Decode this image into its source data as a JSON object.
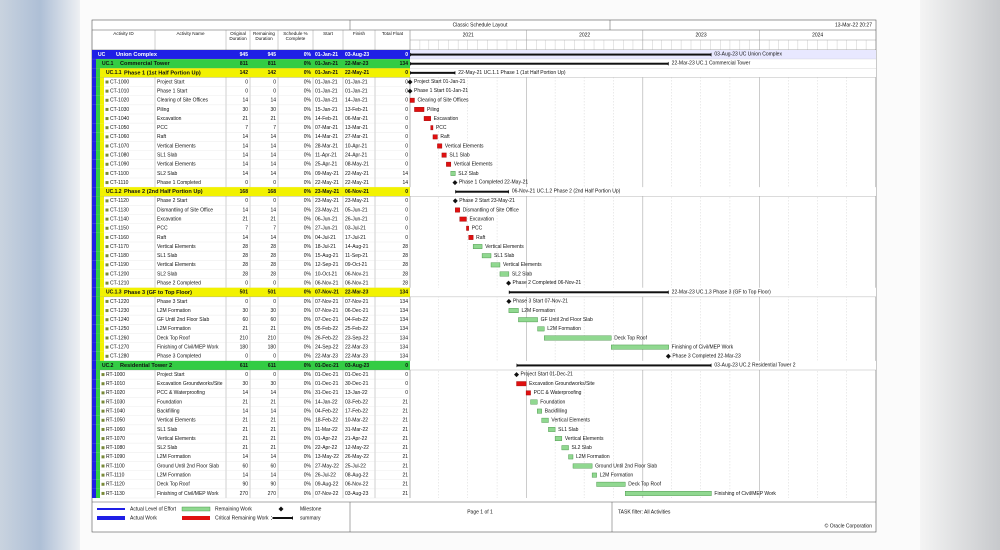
{
  "schedule": {
    "title": "Classic Schedule Layout",
    "date": "13-Mar-22 20:27",
    "columns": [
      "Activity ID",
      "Activity Name",
      "Original Duration",
      "Remaining Duration",
      "Schedule % Complete",
      "Start",
      "Finish",
      "Total Float"
    ],
    "years": [
      "2021",
      "2022",
      "2023",
      "2024"
    ],
    "xlim": [
      "01-Jan-21",
      "31-Dec-24"
    ],
    "wbs": {
      "id": "UC",
      "name": "Union Complex",
      "od": 945,
      "rd": 945,
      "pct": "0%",
      "start": "01-Jan-21",
      "finish": "03-Aug-23",
      "tf": 0,
      "children": [
        {
          "id": "UC.1",
          "name": "Commercial Tower",
          "od": 811,
          "rd": 811,
          "pct": "0%",
          "start": "01-Jan-21",
          "finish": "22-Mar-23",
          "tf": 134,
          "children": [
            {
              "id": "UC.1.1",
              "name": "Phase 1 (1st Half Portion Up)",
              "od": 142,
              "rd": 142,
              "pct": "0%",
              "start": "01-Jan-21",
              "finish": "22-May-21",
              "tf": 0,
              "children": [
                {
                  "id": "CT-1000",
                  "name": "Project Start",
                  "od": 0,
                  "rd": 0,
                  "pct": "0%",
                  "start": "01-Jan-21",
                  "finish": "01-Jan-21",
                  "tf": 0
                },
                {
                  "id": "CT-1010",
                  "name": "Phase 1 Start",
                  "od": 0,
                  "rd": 0,
                  "pct": "0%",
                  "start": "01-Jan-21",
                  "finish": "01-Jan-21",
                  "tf": 0
                },
                {
                  "id": "CT-1020",
                  "name": "Clearing of Site Offices",
                  "od": 14,
                  "rd": 14,
                  "pct": "0%",
                  "start": "01-Jan-21",
                  "finish": "14-Jan-21",
                  "tf": 0
                },
                {
                  "id": "CT-1030",
                  "name": "Piling",
                  "od": 30,
                  "rd": 30,
                  "pct": "0%",
                  "start": "15-Jan-21",
                  "finish": "13-Feb-21",
                  "tf": 0
                },
                {
                  "id": "CT-1040",
                  "name": "Excavation",
                  "od": 21,
                  "rd": 21,
                  "pct": "0%",
                  "start": "14-Feb-21",
                  "finish": "06-Mar-21",
                  "tf": 0
                },
                {
                  "id": "CT-1050",
                  "name": "PCC",
                  "od": 7,
                  "rd": 7,
                  "pct": "0%",
                  "start": "07-Mar-21",
                  "finish": "13-Mar-21",
                  "tf": 0
                },
                {
                  "id": "CT-1060",
                  "name": "Raft",
                  "od": 14,
                  "rd": 14,
                  "pct": "0%",
                  "start": "14-Mar-21",
                  "finish": "27-Mar-21",
                  "tf": 0
                },
                {
                  "id": "CT-1070",
                  "name": "Vertical Elements",
                  "od": 14,
                  "rd": 14,
                  "pct": "0%",
                  "start": "28-Mar-21",
                  "finish": "10-Apr-21",
                  "tf": 0
                },
                {
                  "id": "CT-1080",
                  "name": "SL1 Slab",
                  "od": 14,
                  "rd": 14,
                  "pct": "0%",
                  "start": "11-Apr-21",
                  "finish": "24-Apr-21",
                  "tf": 0
                },
                {
                  "id": "CT-1090",
                  "name": "Vertical Elements",
                  "od": 14,
                  "rd": 14,
                  "pct": "0%",
                  "start": "25-Apr-21",
                  "finish": "08-May-21",
                  "tf": 0
                },
                {
                  "id": "CT-1100",
                  "name": "SL2 Slab",
                  "od": 14,
                  "rd": 14,
                  "pct": "0%",
                  "start": "09-May-21",
                  "finish": "22-May-21",
                  "tf": 14
                },
                {
                  "id": "CT-1110",
                  "name": "Phase 1 Completed",
                  "od": 0,
                  "rd": 0,
                  "pct": "0%",
                  "start": "22-May-21",
                  "finish": "22-May-21",
                  "tf": 14
                }
              ]
            },
            {
              "id": "UC.1.2",
              "name": "Phase 2 (2nd Half Portion Up)",
              "od": 168,
              "rd": 168,
              "pct": "0%",
              "start": "23-May-21",
              "finish": "06-Nov-21",
              "tf": 0,
              "children": [
                {
                  "id": "CT-1120",
                  "name": "Phase 2 Start",
                  "od": 0,
                  "rd": 0,
                  "pct": "0%",
                  "start": "23-May-21",
                  "finish": "23-May-21",
                  "tf": 0
                },
                {
                  "id": "CT-1130",
                  "name": "Dismantling of Site Office",
                  "od": 14,
                  "rd": 14,
                  "pct": "0%",
                  "start": "23-May-21",
                  "finish": "05-Jun-21",
                  "tf": 0
                },
                {
                  "id": "CT-1140",
                  "name": "Excavation",
                  "od": 21,
                  "rd": 21,
                  "pct": "0%",
                  "start": "06-Jun-21",
                  "finish": "26-Jun-21",
                  "tf": 0
                },
                {
                  "id": "CT-1150",
                  "name": "PCC",
                  "od": 7,
                  "rd": 7,
                  "pct": "0%",
                  "start": "27-Jun-21",
                  "finish": "03-Jul-21",
                  "tf": 0
                },
                {
                  "id": "CT-1160",
                  "name": "Raft",
                  "od": 14,
                  "rd": 14,
                  "pct": "0%",
                  "start": "04-Jul-21",
                  "finish": "17-Jul-21",
                  "tf": 0
                },
                {
                  "id": "CT-1170",
                  "name": "Vertical Elements",
                  "od": 28,
                  "rd": 28,
                  "pct": "0%",
                  "start": "18-Jul-21",
                  "finish": "14-Aug-21",
                  "tf": 28
                },
                {
                  "id": "CT-1180",
                  "name": "SL1 Slab",
                  "od": 28,
                  "rd": 28,
                  "pct": "0%",
                  "start": "15-Aug-21",
                  "finish": "11-Sep-21",
                  "tf": 28
                },
                {
                  "id": "CT-1190",
                  "name": "Vertical Elements",
                  "od": 28,
                  "rd": 28,
                  "pct": "0%",
                  "start": "12-Sep-21",
                  "finish": "09-Oct-21",
                  "tf": 28
                },
                {
                  "id": "CT-1200",
                  "name": "SL2 Slab",
                  "od": 28,
                  "rd": 28,
                  "pct": "0%",
                  "start": "10-Oct-21",
                  "finish": "06-Nov-21",
                  "tf": 28
                },
                {
                  "id": "CT-1210",
                  "name": "Phase 2 Completed",
                  "od": 0,
                  "rd": 0,
                  "pct": "0%",
                  "start": "06-Nov-21",
                  "finish": "06-Nov-21",
                  "tf": 28
                }
              ]
            },
            {
              "id": "UC.1.3",
              "name": "Phase 3 (GF to Top Floor)",
              "od": 501,
              "rd": 501,
              "pct": "0%",
              "start": "07-Nov-21",
              "finish": "22-Mar-23",
              "tf": 134,
              "children": [
                {
                  "id": "CT-1220",
                  "name": "Phase 3 Start",
                  "od": 0,
                  "rd": 0,
                  "pct": "0%",
                  "start": "07-Nov-21",
                  "finish": "07-Nov-21",
                  "tf": 134
                },
                {
                  "id": "CT-1230",
                  "name": "L2M Formation",
                  "od": 30,
                  "rd": 30,
                  "pct": "0%",
                  "start": "07-Nov-21",
                  "finish": "06-Dec-21",
                  "tf": 134
                },
                {
                  "id": "CT-1240",
                  "name": "GF Until 2nd Floor Slab",
                  "od": 60,
                  "rd": 60,
                  "pct": "0%",
                  "start": "07-Dec-21",
                  "finish": "04-Feb-22",
                  "tf": 134
                },
                {
                  "id": "CT-1250",
                  "name": "L2M Formation",
                  "od": 21,
                  "rd": 21,
                  "pct": "0%",
                  "start": "05-Feb-22",
                  "finish": "25-Feb-22",
                  "tf": 134
                },
                {
                  "id": "CT-1260",
                  "name": "Deck Top Roof",
                  "od": 210,
                  "rd": 210,
                  "pct": "0%",
                  "start": "26-Feb-22",
                  "finish": "23-Sep-22",
                  "tf": 134
                },
                {
                  "id": "CT-1270",
                  "name": "Finishing of Civil/MEP Work",
                  "od": 180,
                  "rd": 180,
                  "pct": "0%",
                  "start": "24-Sep-22",
                  "finish": "22-Mar-23",
                  "tf": 134
                },
                {
                  "id": "CT-1280",
                  "name": "Phase 3 Completed",
                  "od": 0,
                  "rd": 0,
                  "pct": "0%",
                  "start": "22-Mar-23",
                  "finish": "22-Mar-23",
                  "tf": 134
                }
              ]
            }
          ]
        },
        {
          "id": "UC.2",
          "name": "Residential Tower 2",
          "od": 611,
          "rd": 611,
          "pct": "0%",
          "start": "01-Dec-21",
          "finish": "03-Aug-23",
          "tf": 0,
          "children": [
            {
              "id": "RT-1000",
              "name": "Project Start",
              "od": 0,
              "rd": 0,
              "pct": "0%",
              "start": "01-Dec-21",
              "finish": "01-Dec-21",
              "tf": 0
            },
            {
              "id": "RT-1010",
              "name": "Excavation Groundworks/Site",
              "od": 30,
              "rd": 30,
              "pct": "0%",
              "start": "01-Dec-21",
              "finish": "30-Dec-21",
              "tf": 0
            },
            {
              "id": "RT-1020",
              "name": "PCC & Waterproofing",
              "od": 14,
              "rd": 14,
              "pct": "0%",
              "start": "31-Dec-21",
              "finish": "13-Jan-22",
              "tf": 0
            },
            {
              "id": "RT-1030",
              "name": "Foundation",
              "od": 21,
              "rd": 21,
              "pct": "0%",
              "start": "14-Jan-22",
              "finish": "03-Feb-22",
              "tf": 21
            },
            {
              "id": "RT-1040",
              "name": "Backfilling",
              "od": 14,
              "rd": 14,
              "pct": "0%",
              "start": "04-Feb-22",
              "finish": "17-Feb-22",
              "tf": 21
            },
            {
              "id": "RT-1050",
              "name": "Vertical Elements",
              "od": 21,
              "rd": 21,
              "pct": "0%",
              "start": "18-Feb-22",
              "finish": "10-Mar-22",
              "tf": 21
            },
            {
              "id": "RT-1060",
              "name": "SL1 Slab",
              "od": 21,
              "rd": 21,
              "pct": "0%",
              "start": "11-Mar-22",
              "finish": "31-Mar-22",
              "tf": 21
            },
            {
              "id": "RT-1070",
              "name": "Vertical Elements",
              "od": 21,
              "rd": 21,
              "pct": "0%",
              "start": "01-Apr-22",
              "finish": "21-Apr-22",
              "tf": 21
            },
            {
              "id": "RT-1080",
              "name": "SL2 Slab",
              "od": 21,
              "rd": 21,
              "pct": "0%",
              "start": "22-Apr-22",
              "finish": "12-May-22",
              "tf": 21
            },
            {
              "id": "RT-1090",
              "name": "L2M Formation",
              "od": 14,
              "rd": 14,
              "pct": "0%",
              "start": "13-May-22",
              "finish": "26-May-22",
              "tf": 21
            },
            {
              "id": "RT-1100",
              "name": "Ground Until 2nd Floor Slab",
              "od": 60,
              "rd": 60,
              "pct": "0%",
              "start": "27-May-22",
              "finish": "25-Jul-22",
              "tf": 21
            },
            {
              "id": "RT-1110",
              "name": "L2M Formation",
              "od": 14,
              "rd": 14,
              "pct": "0%",
              "start": "26-Jul-22",
              "finish": "08-Aug-22",
              "tf": 21
            },
            {
              "id": "RT-1120",
              "name": "Deck Top Roof",
              "od": 90,
              "rd": 90,
              "pct": "0%",
              "start": "09-Aug-22",
              "finish": "06-Nov-22",
              "tf": 21
            },
            {
              "id": "RT-1130",
              "name": "Finishing of Civil/MEP Work",
              "od": 270,
              "rd": 270,
              "pct": "0%",
              "start": "07-Nov-22",
              "finish": "03-Aug-23",
              "tf": 21
            }
          ]
        }
      ]
    }
  },
  "footer": {
    "legend": [
      "Actual Level of Effort",
      "Actual Work",
      "Remaining Work",
      "Critical Remaining Work",
      "Milestone",
      "summary"
    ],
    "page": "Page 1 of 1",
    "filter": "TASK filter: All Activities",
    "copyright": "© Oracle Corporation"
  }
}
